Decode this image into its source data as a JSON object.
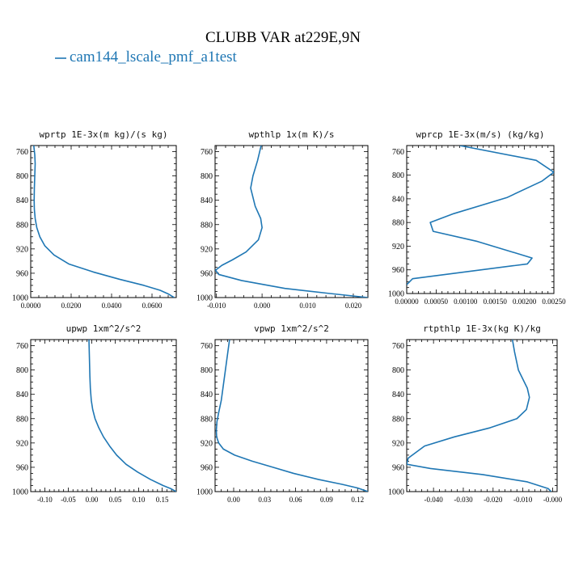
{
  "title": "CLUBB VAR at229E,9N",
  "legend": {
    "label": "cam144_lscale_pmf_a1test",
    "color": "#1f77b4"
  },
  "chart_data": [
    {
      "type": "line",
      "title": "wprtp  1E-3x(m kg)/(s kg)",
      "xlim": [
        0.0,
        0.072
      ],
      "ylim": [
        1000,
        750
      ],
      "xticks": [
        0.0,
        0.02,
        0.04,
        0.06
      ],
      "xticklabels": [
        "0.0000",
        "0.0200",
        "0.0400",
        "0.0600"
      ],
      "yticks": [
        760,
        800,
        840,
        880,
        920,
        960,
        1000
      ],
      "series": [
        {
          "x": [
            0.0015,
            0.002,
            0.0022,
            0.002,
            0.0018,
            0.0017,
            0.0018,
            0.0022,
            0.003,
            0.0045,
            0.007,
            0.0115,
            0.019,
            0.031,
            0.044,
            0.056,
            0.064,
            0.068,
            0.071
          ],
          "y": [
            750,
            765,
            780,
            800,
            820,
            840,
            855,
            870,
            885,
            900,
            915,
            930,
            945,
            958,
            970,
            980,
            988,
            994,
            1000
          ]
        }
      ]
    },
    {
      "type": "line",
      "title": "wpthlp  1x(m K)/s",
      "xlim": [
        -0.0103,
        0.0232
      ],
      "ylim": [
        1000,
        750
      ],
      "xticks": [
        -0.01,
        0.0,
        0.01,
        0.02
      ],
      "xticklabels": [
        "-0.010",
        "0.000",
        "0.010",
        "0.020"
      ],
      "yticks": [
        760,
        800,
        840,
        880,
        920,
        960,
        1000
      ],
      "series": [
        {
          "x": [
            -0.0002,
            -0.001,
            -0.002,
            -0.0025,
            -0.0015,
            -0.0003,
            0.0,
            -0.0008,
            -0.0035,
            -0.0065,
            -0.0088,
            -0.0102,
            -0.0095,
            -0.0045,
            0.005,
            0.0145,
            0.0232
          ],
          "y": [
            750,
            775,
            800,
            820,
            850,
            870,
            885,
            905,
            925,
            938,
            947,
            955,
            962,
            972,
            985,
            993,
            1000
          ]
        }
      ]
    },
    {
      "type": "line",
      "title": "wprcp  1E-3x(m/s) (kg/kg)",
      "xlim": [
        0.0,
        0.0025
      ],
      "ylim": [
        1000,
        750
      ],
      "xticks": [
        0.0,
        0.0005,
        0.001,
        0.0015,
        0.002,
        0.0025
      ],
      "xticklabels": [
        "0.00000",
        "0.00050",
        "0.00100",
        "0.00150",
        "0.00200",
        "0.00250"
      ],
      "yticks": [
        760,
        800,
        840,
        880,
        920,
        960,
        1000
      ],
      "series": [
        {
          "x": [
            0.0009,
            0.0022,
            0.0025,
            0.0023,
            0.0017,
            0.0008,
            0.0004,
            0.00045,
            0.0012,
            0.00213,
            0.00205,
            0.0001,
            0.0
          ],
          "y": [
            750,
            775,
            795,
            810,
            838,
            865,
            880,
            895,
            912,
            940,
            950,
            975,
            985
          ]
        }
      ]
    },
    {
      "type": "line",
      "title": "upwp  1xm^2/s^2",
      "xlim": [
        -0.13,
        0.18
      ],
      "ylim": [
        1000,
        750
      ],
      "xticks": [
        -0.1,
        -0.05,
        0.0,
        0.05,
        0.1,
        0.15
      ],
      "xticklabels": [
        "-0.10",
        "-0.05",
        "0.00",
        "0.05",
        "0.10",
        "0.15"
      ],
      "yticks": [
        760,
        800,
        840,
        880,
        920,
        960,
        1000
      ],
      "series": [
        {
          "x": [
            -0.006,
            -0.005,
            -0.004,
            -0.003,
            -0.001,
            0.002,
            0.007,
            0.015,
            0.025,
            0.038,
            0.053,
            0.073,
            0.098,
            0.125,
            0.152,
            0.168,
            0.18
          ],
          "y": [
            750,
            780,
            810,
            830,
            850,
            865,
            880,
            895,
            910,
            925,
            940,
            955,
            968,
            980,
            990,
            995,
            1000
          ]
        }
      ]
    },
    {
      "type": "line",
      "title": "vpwp  1xm^2/s^2",
      "xlim": [
        -0.018,
        0.13
      ],
      "ylim": [
        1000,
        750
      ],
      "xticks": [
        0.0,
        0.03,
        0.06,
        0.09,
        0.12
      ],
      "xticklabels": [
        "0.00",
        "0.03",
        "0.06",
        "0.09",
        "0.12"
      ],
      "yticks": [
        760,
        800,
        840,
        880,
        920,
        960,
        1000
      ],
      "series": [
        {
          "x": [
            -0.004,
            -0.006,
            -0.008,
            -0.01,
            -0.012,
            -0.0145,
            -0.0162,
            -0.0168,
            -0.0165,
            -0.0145,
            -0.01,
            0.001,
            0.018,
            0.038,
            0.058,
            0.082,
            0.105,
            0.12,
            0.13
          ],
          "y": [
            750,
            775,
            800,
            825,
            850,
            870,
            885,
            900,
            910,
            920,
            930,
            940,
            950,
            960,
            970,
            980,
            988,
            994,
            1000
          ]
        }
      ]
    },
    {
      "type": "line",
      "title": "rtpthlp  1E-3x(kg K)/kg",
      "xlim": [
        -0.049,
        0.0015
      ],
      "ylim": [
        1000,
        750
      ],
      "xticks": [
        -0.04,
        -0.03,
        -0.02,
        -0.01,
        0.0
      ],
      "xticklabels": [
        "-0.040",
        "-0.030",
        "-0.020",
        "-0.010",
        "-0.000"
      ],
      "yticks": [
        760,
        800,
        840,
        880,
        920,
        960,
        1000
      ],
      "series": [
        {
          "x": [
            -0.0135,
            -0.0128,
            -0.0115,
            -0.0085,
            -0.0078,
            -0.0088,
            -0.012,
            -0.021,
            -0.033,
            -0.043,
            -0.0485,
            -0.049,
            -0.041,
            -0.0235,
            -0.0085,
            -0.0015,
            -0.0005
          ],
          "y": [
            750,
            770,
            800,
            830,
            845,
            865,
            880,
            895,
            910,
            925,
            945,
            955,
            962,
            972,
            984,
            995,
            1000
          ]
        }
      ]
    }
  ]
}
